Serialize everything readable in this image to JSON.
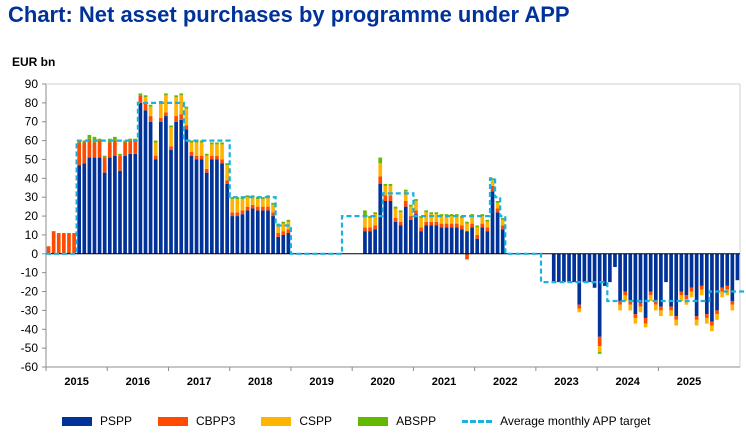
{
  "title": "Chart: Net asset purchases by programme under APP",
  "chart_data": {
    "type": "bar",
    "stacked": true,
    "title": "Chart: Net asset purchases by programme under APP",
    "ylabel": "EUR bn",
    "ylim": [
      -60,
      90
    ],
    "yticks": [
      90,
      80,
      70,
      60,
      50,
      40,
      30,
      20,
      10,
      0,
      -10,
      -20,
      -30,
      -40,
      -50,
      -60
    ],
    "grid": false,
    "legend_position": "bottom",
    "x_start": "2015-01",
    "year_labels": [
      "2015",
      "2016",
      "2017",
      "2018",
      "2019",
      "2020",
      "2021",
      "2022",
      "2023",
      "2024",
      "2025"
    ],
    "series": [
      {
        "name": "PSPP",
        "color": "#003299",
        "values": [
          0,
          0,
          0,
          0,
          0,
          0,
          47,
          48,
          51,
          51,
          51,
          43,
          51,
          52,
          44,
          52,
          53,
          53,
          80,
          76,
          70,
          50,
          70,
          73,
          55,
          70,
          71,
          66,
          52,
          50,
          50,
          43,
          50,
          50,
          48,
          37,
          20,
          20,
          21,
          23,
          24,
          23,
          23,
          23,
          20,
          9,
          10,
          11,
          0,
          0,
          0,
          0,
          0,
          0,
          0,
          0,
          0,
          0,
          0,
          0,
          0,
          0,
          12,
          12,
          13,
          37,
          28,
          28,
          17,
          15,
          25,
          18,
          21,
          12,
          15,
          15,
          15,
          14,
          14,
          14,
          14,
          13,
          12,
          14,
          8,
          14,
          12,
          33,
          22,
          13,
          0,
          0,
          0,
          0,
          0,
          0,
          0,
          0,
          0,
          -15,
          -15,
          -15,
          -15,
          -15,
          -27,
          -15,
          -15,
          -18,
          -44,
          -17,
          -15,
          -7,
          -25,
          -20,
          -25,
          -32,
          -26,
          -34,
          -20,
          -25,
          -28,
          -15,
          -28,
          -33,
          -20,
          -22,
          -18,
          -33,
          -17,
          -32,
          -36,
          -30,
          -18,
          -17,
          -25,
          -14
        ]
      },
      {
        "name": "CBPP3",
        "color": "#ff4b00",
        "values": [
          4,
          12,
          11,
          11,
          11,
          11,
          12,
          11,
          10,
          8,
          9,
          8,
          8,
          8,
          8,
          7,
          7,
          7,
          4,
          4,
          3,
          2,
          2,
          2,
          2,
          3,
          3,
          2,
          2,
          2,
          2,
          2,
          2,
          2,
          2,
          2,
          2,
          2,
          2,
          2,
          2,
          2,
          2,
          2,
          2,
          2,
          2,
          2,
          0,
          0,
          0,
          0,
          0,
          0,
          0,
          0,
          0,
          0,
          0,
          0,
          0,
          0,
          2,
          2,
          2,
          4,
          3,
          3,
          2,
          2,
          3,
          2,
          2,
          2,
          2,
          2,
          2,
          2,
          2,
          2,
          2,
          2,
          -3,
          2,
          2,
          2,
          2,
          3,
          2,
          2,
          0,
          0,
          0,
          0,
          0,
          0,
          0,
          0,
          0,
          0,
          0,
          0,
          0,
          0,
          -2,
          0,
          0,
          0,
          -5,
          0,
          0,
          0,
          -2,
          -2,
          -2,
          -2,
          -2,
          -3,
          -2,
          -2,
          -2,
          0,
          -2,
          -2,
          -2,
          -2,
          -2,
          -2,
          -2,
          -2,
          -2,
          -2,
          -2,
          -2,
          -2,
          0
        ]
      },
      {
        "name": "CSPP",
        "color": "#ffb400",
        "values": [
          0,
          0,
          0,
          0,
          0,
          0,
          0,
          0,
          0,
          0,
          0,
          0,
          0,
          0,
          0,
          0,
          0,
          0,
          0,
          3,
          5,
          7,
          8,
          9,
          10,
          10,
          10,
          9,
          5,
          7,
          7,
          7,
          6,
          6,
          8,
          8,
          7,
          7,
          6,
          5,
          4,
          4,
          4,
          5,
          4,
          4,
          4,
          4,
          0,
          0,
          0,
          0,
          0,
          0,
          0,
          0,
          0,
          0,
          0,
          0,
          0,
          0,
          6,
          5,
          6,
          7,
          5,
          5,
          5,
          5,
          5,
          5,
          5,
          5,
          5,
          4,
          4,
          4,
          4,
          4,
          4,
          4,
          4,
          4,
          4,
          4,
          3,
          3,
          3,
          3,
          0,
          0,
          0,
          0,
          0,
          0,
          0,
          0,
          0,
          0,
          0,
          0,
          0,
          0,
          -2,
          0,
          0,
          0,
          -3,
          0,
          0,
          0,
          -3,
          -3,
          -3,
          -3,
          -3,
          -2,
          -3,
          -3,
          -3,
          0,
          -3,
          -3,
          -3,
          -3,
          -3,
          -3,
          -3,
          -3,
          -3,
          -3,
          -3,
          -3,
          -3,
          0
        ]
      },
      {
        "name": "ABSPP",
        "color": "#65b800",
        "values": [
          0,
          0,
          0,
          0,
          0,
          0,
          1,
          1,
          2,
          3,
          1,
          1,
          2,
          2,
          1,
          1,
          1,
          1,
          1,
          1,
          1,
          1,
          1,
          1,
          1,
          1,
          1,
          1,
          1,
          1,
          1,
          1,
          1,
          1,
          1,
          1,
          1,
          1,
          1,
          1,
          1,
          1,
          1,
          1,
          1,
          1,
          1,
          1,
          0,
          0,
          0,
          0,
          0,
          0,
          0,
          0,
          0,
          0,
          0,
          0,
          0,
          0,
          3,
          1,
          1,
          3,
          1,
          1,
          1,
          1,
          1,
          1,
          1,
          1,
          1,
          1,
          1,
          1,
          1,
          1,
          1,
          1,
          1,
          1,
          1,
          1,
          1,
          1,
          1,
          1,
          0,
          0,
          0,
          0,
          0,
          0,
          0,
          0,
          0,
          0,
          0,
          0,
          0,
          0,
          0,
          0,
          0,
          0,
          -1,
          0,
          0,
          0,
          0,
          0,
          0,
          0,
          0,
          0,
          0,
          0,
          0,
          0,
          0,
          0,
          0,
          0,
          0,
          0,
          0,
          0,
          0,
          0,
          0,
          0,
          0,
          0
        ]
      },
      {
        "name": "Average monthly APP target",
        "color": "#1ab0e0",
        "style": "dashed",
        "steps": [
          {
            "from": 0,
            "to": 6,
            "value": 0
          },
          {
            "from": 6,
            "to": 18,
            "value": 60
          },
          {
            "from": 18,
            "to": 27,
            "value": 80
          },
          {
            "from": 27,
            "to": 36,
            "value": 60
          },
          {
            "from": 36,
            "to": 45,
            "value": 30
          },
          {
            "from": 45,
            "to": 48,
            "value": 15
          },
          {
            "from": 48,
            "to": 58,
            "value": 0
          },
          {
            "from": 58,
            "to": 62,
            "value": 20
          },
          {
            "from": 62,
            "to": 66,
            "value": 20
          },
          {
            "from": 66,
            "to": 72,
            "value": 32
          },
          {
            "from": 72,
            "to": 84,
            "value": 20
          },
          {
            "from": 84,
            "to": 87,
            "value": 20
          },
          {
            "from": 87,
            "to": 88,
            "value": 40
          },
          {
            "from": 88,
            "to": 89,
            "value": 30
          },
          {
            "from": 89,
            "to": 90,
            "value": 20
          },
          {
            "from": 90,
            "to": 97,
            "value": 0
          },
          {
            "from": 97,
            "to": 110,
            "value": -15
          },
          {
            "from": 110,
            "to": 120,
            "value": -25
          },
          {
            "from": 120,
            "to": 126,
            "value": -25
          },
          {
            "from": 126,
            "to": 130,
            "value": -25
          },
          {
            "from": 130,
            "to": 140,
            "value": -20
          }
        ]
      }
    ]
  },
  "legend": [
    {
      "label": "PSPP",
      "color": "#003299",
      "kind": "bar"
    },
    {
      "label": "CBPP3",
      "color": "#ff4b00",
      "kind": "bar"
    },
    {
      "label": "CSPP",
      "color": "#ffb400",
      "kind": "bar"
    },
    {
      "label": "ABSPP",
      "color": "#65b800",
      "kind": "bar"
    },
    {
      "label": "Average monthly APP target",
      "color": "#1ab0e0",
      "kind": "dashed-line"
    }
  ]
}
